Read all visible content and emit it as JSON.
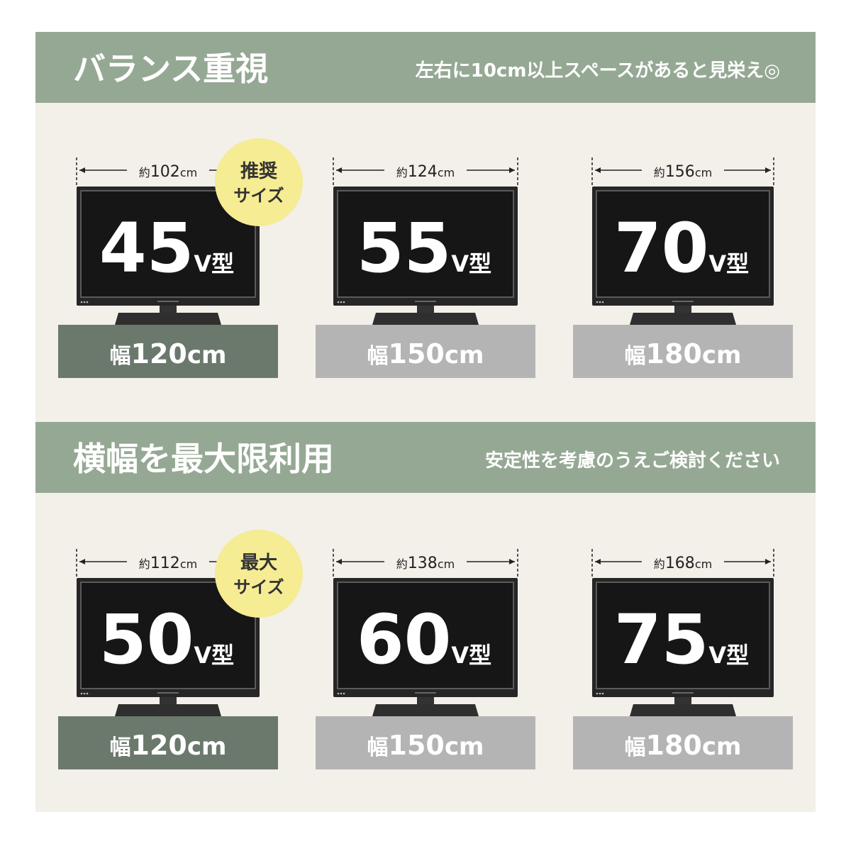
{
  "sections": [
    {
      "title": "バランス重視",
      "subtitle": "左右に10cm以上スペースがあると見栄え◎",
      "items": [
        {
          "width_prefix": "約",
          "width": "102",
          "width_unit": "cm",
          "size": "45",
          "size_unit": "V型",
          "board_prefix": "幅",
          "board": "120",
          "board_unit": "cm",
          "badge": [
            "推奨",
            "サイズ"
          ]
        },
        {
          "width_prefix": "約",
          "width": "124",
          "width_unit": "cm",
          "size": "55",
          "size_unit": "V型",
          "board_prefix": "幅",
          "board": "150",
          "board_unit": "cm"
        },
        {
          "width_prefix": "約",
          "width": "156",
          "width_unit": "cm",
          "size": "70",
          "size_unit": "V型",
          "board_prefix": "幅",
          "board": "180",
          "board_unit": "cm"
        }
      ]
    },
    {
      "title": "横幅を最大限利用",
      "subtitle": "安定性を考慮のうえご検討ください",
      "items": [
        {
          "width_prefix": "約",
          "width": "112",
          "width_unit": "cm",
          "size": "50",
          "size_unit": "V型",
          "board_prefix": "幅",
          "board": "120",
          "board_unit": "cm",
          "badge": [
            "最大",
            "サイズ"
          ]
        },
        {
          "width_prefix": "約",
          "width": "138",
          "width_unit": "cm",
          "size": "60",
          "size_unit": "V型",
          "board_prefix": "幅",
          "board": "150",
          "board_unit": "cm"
        },
        {
          "width_prefix": "約",
          "width": "168",
          "width_unit": "cm",
          "size": "75",
          "size_unit": "V型",
          "board_prefix": "幅",
          "board": "180",
          "board_unit": "cm"
        }
      ]
    }
  ]
}
